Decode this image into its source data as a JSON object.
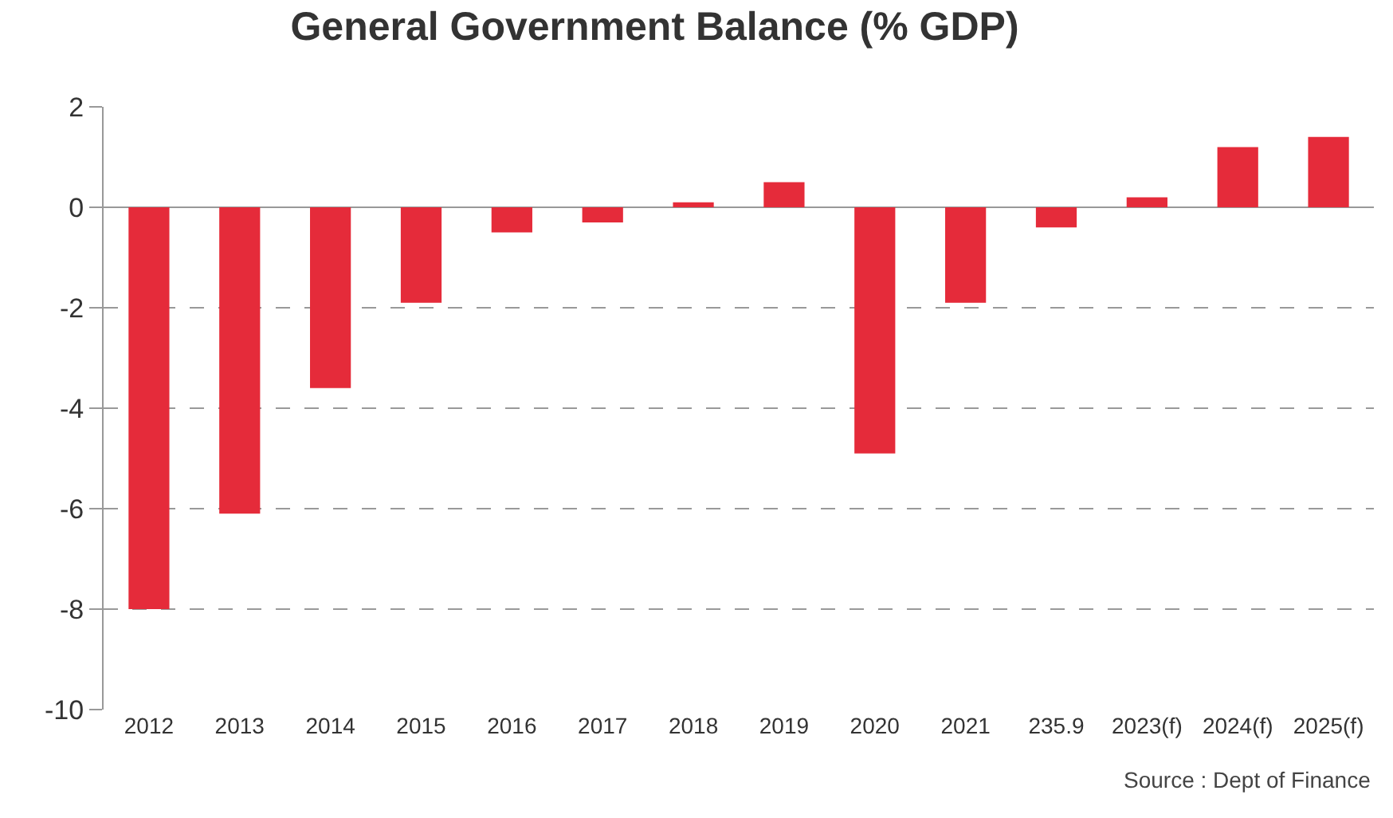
{
  "chart_data": {
    "type": "bar",
    "title": "General Government Balance (% GDP)",
    "categories": [
      "2012",
      "2013",
      "2014",
      "2015",
      "2016",
      "2017",
      "2018",
      "2019",
      "2020",
      "2021",
      "235.9",
      "2023(f)",
      "2024(f)",
      "2025(f)"
    ],
    "values": [
      -8,
      -6.1,
      -3.6,
      -1.9,
      -0.5,
      -0.3,
      0.1,
      0.5,
      -4.9,
      -1.9,
      -0.4,
      0.2,
      1.2,
      1.4
    ],
    "color": "#e52b3a",
    "ylim": [
      -10,
      2
    ],
    "yticks": [
      -10,
      -8,
      -6,
      -4,
      -2,
      0,
      2
    ],
    "grid": "y",
    "line_style": "dashed",
    "legend": false,
    "annotations": [
      "Source : Dept of Finance"
    ]
  }
}
